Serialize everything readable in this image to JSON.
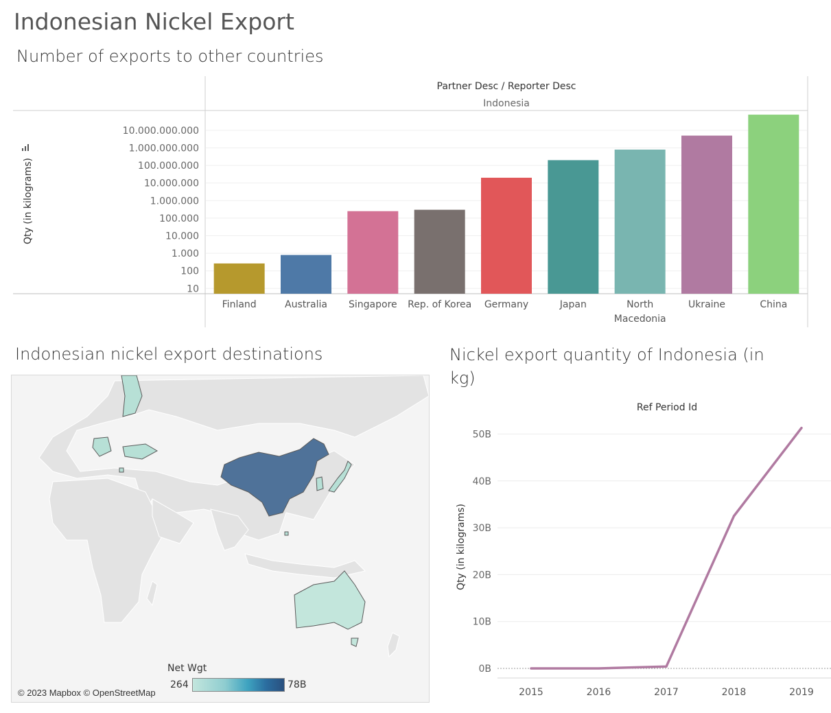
{
  "dashboard": {
    "title": "Indonesian Nickel Export"
  },
  "bar_sheet": {
    "title": "Number of exports to other countries",
    "header_label": "Partner Desc / Reporter Desc",
    "header_value": "Indonesia",
    "y_axis_label": "Qty (in kilograms)",
    "y_ticks": [
      "10",
      "100",
      "1.000",
      "10.000",
      "100.000",
      "1.000.000",
      "10.000.000",
      "100.000.000",
      "1.000.000.000",
      "10.000.000.000"
    ]
  },
  "map_sheet": {
    "title": "Indonesian nickel export destinations",
    "attribution": "© 2023 Mapbox © OpenStreetMap",
    "legend": {
      "title": "Net Wgt",
      "min_label": "264",
      "max_label": "78B"
    }
  },
  "line_sheet": {
    "title": "Nickel export quantity of Indonesia (in kg)",
    "header_label": "Ref Period Id",
    "y_axis_label": "Qty (in kilograms)",
    "y_ticks": [
      "0B",
      "10B",
      "20B",
      "30B",
      "40B",
      "50B"
    ]
  },
  "chart_data": [
    {
      "type": "bar",
      "scale": "log",
      "ylabel": "Qty (in kilograms)",
      "ylim": [
        5,
        50000000000
      ],
      "categories": [
        "Finland",
        "Australia",
        "Singapore",
        "Rep. of Korea",
        "Germany",
        "Japan",
        "North Macedonia",
        "Ukraine",
        "China"
      ],
      "category_lines": [
        [
          "Finland"
        ],
        [
          "Australia"
        ],
        [
          "Singapore"
        ],
        [
          "Rep. of Korea"
        ],
        [
          "Germany"
        ],
        [
          "Japan"
        ],
        [
          "North",
          "Macedonia"
        ],
        [
          "Ukraine"
        ],
        [
          "China"
        ]
      ],
      "values": [
        264,
        800,
        250000,
        300000,
        20000000,
        200000000,
        800000000,
        5000000000,
        78000000000
      ],
      "colors": [
        "#b6992d",
        "#4e79a7",
        "#d37295",
        "#79706e",
        "#e15759",
        "#499894",
        "#79b5b0",
        "#b07aa1",
        "#8cd17d"
      ]
    },
    {
      "type": "line",
      "title": "Ref Period Id",
      "ylabel": "Qty (in kilograms)",
      "x": [
        "2015",
        "2016",
        "2017",
        "2018",
        "2019"
      ],
      "values": [
        0,
        0,
        400000000,
        32500000000,
        51300000000
      ],
      "ylim": [
        0,
        52000000000
      ],
      "color": "#b07aa1",
      "grid": true
    }
  ]
}
